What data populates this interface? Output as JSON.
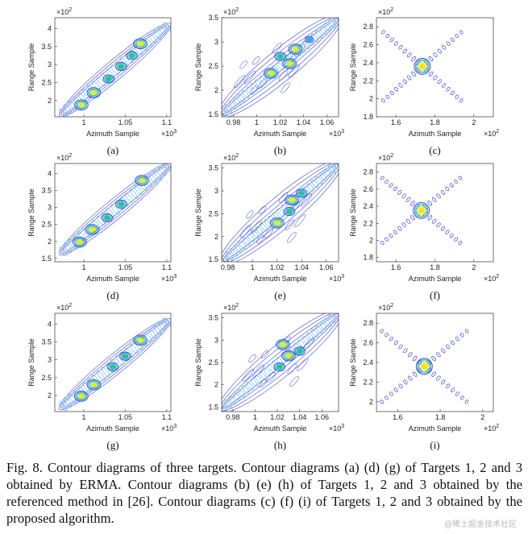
{
  "figure": {
    "caption": "Fig. 8. Contour diagrams of three targets. Contour diagrams (a) (d) (g) of Targets 1, 2 and 3 obtained by ERMA. Contour diagrams (b) (e) (h) of Targets 1, 2 and 3 obtained by the referenced method in [26]. Contour diagrams (c) (f) (i) of Targets 1, 2 and 3 obtained by the proposed algorithm.",
    "watermark": "@稀土掘金技术社区"
  },
  "colors": {
    "contour_outer": "#3b45d8",
    "contour_mid": "#2fa9e6",
    "contour_core": "#23c58a",
    "contour_hot": "#f1e32a",
    "axis": "#333333"
  },
  "chart_data": [
    {
      "id": "a",
      "type": "contour",
      "subtitle": "(a)",
      "method": "ERMA",
      "xlabel": "Azimuth Sample",
      "ylabel": "Range Sample",
      "x_exponent": "10^3",
      "y_exponent": "10^2",
      "xlim": [
        0.965,
        1.105
      ],
      "ylim": [
        1.55,
        4.3
      ],
      "xticks": [
        1,
        1.05,
        1.1
      ],
      "xtick_labels": [
        "1",
        "1.05",
        "1.1"
      ],
      "yticks": [
        2,
        2.5,
        3,
        3.5,
        4
      ],
      "ytick_labels": [
        "2",
        "2.5",
        "3",
        "3.5",
        "4"
      ],
      "pattern": "diagonal",
      "line": {
        "x1": 0.975,
        "y1": 1.65,
        "x2": 1.1,
        "y2": 4.05
      },
      "blobs": [
        {
          "x": 0.997,
          "y": 1.88,
          "level": 4
        },
        {
          "x": 1.012,
          "y": 2.22,
          "level": 4
        },
        {
          "x": 1.03,
          "y": 2.6,
          "level": 3
        },
        {
          "x": 1.045,
          "y": 2.95,
          "level": 3
        },
        {
          "x": 1.058,
          "y": 3.25,
          "level": 3
        },
        {
          "x": 1.068,
          "y": 3.58,
          "level": 4
        }
      ]
    },
    {
      "id": "b",
      "type": "contour",
      "subtitle": "(b)",
      "method": "Referenced method [26]",
      "xlabel": "Azimuth Sample",
      "ylabel": "Range Sample",
      "x_exponent": "10^3",
      "y_exponent": "10^2",
      "xlim": [
        0.97,
        1.07
      ],
      "ylim": [
        1.45,
        3.5
      ],
      "xticks": [
        0.98,
        1,
        1.02,
        1.04,
        1.06
      ],
      "xtick_labels": [
        "0.98",
        "1",
        "1.02",
        "1.04",
        "1.06"
      ],
      "yticks": [
        1.5,
        2,
        2.5,
        3,
        3.5
      ],
      "ytick_labels": [
        "1.5",
        "2",
        "2.5",
        "3",
        "3.5"
      ],
      "pattern": "scatter",
      "line": {
        "x1": 0.972,
        "y1": 1.55,
        "x2": 1.068,
        "y2": 3.45
      },
      "blobs": [
        {
          "x": 1.012,
          "y": 2.35,
          "level": 4
        },
        {
          "x": 1.028,
          "y": 2.55,
          "level": 4
        },
        {
          "x": 1.033,
          "y": 2.85,
          "level": 4
        },
        {
          "x": 1.02,
          "y": 2.7,
          "level": 3
        },
        {
          "x": 1.045,
          "y": 3.05,
          "level": 2
        }
      ]
    },
    {
      "id": "c",
      "type": "contour",
      "subtitle": "(c)",
      "method": "Proposed algorithm",
      "xlabel": "Azimuth Sample",
      "ylabel": "Range Sample",
      "x_exponent": "10^2",
      "y_exponent": "10^2",
      "xlim": [
        1.5,
        2.1
      ],
      "ylim": [
        1.8,
        2.9
      ],
      "xticks": [
        1.6,
        1.8,
        2
      ],
      "xtick_labels": [
        "1.6",
        "1.8",
        "2"
      ],
      "yticks": [
        1.8,
        2,
        2.2,
        2.4,
        2.6,
        2.8
      ],
      "ytick_labels": [
        "1.8",
        "2",
        "2.2",
        "2.4",
        "2.6",
        "2.8"
      ],
      "pattern": "cross",
      "center": {
        "x": 1.735,
        "y": 2.36
      },
      "arms": {
        "dx": 0.2,
        "dy": 0.38
      },
      "blobs": [
        {
          "x": 1.735,
          "y": 2.36,
          "level": 5
        }
      ]
    },
    {
      "id": "d",
      "type": "contour",
      "subtitle": "(d)",
      "method": "ERMA",
      "xlabel": "Azimuth Sample",
      "ylabel": "Range Sample",
      "x_exponent": "10^3",
      "y_exponent": "10^2",
      "xlim": [
        0.965,
        1.105
      ],
      "ylim": [
        1.4,
        4.3
      ],
      "xticks": [
        1,
        1.05,
        1.1
      ],
      "xtick_labels": [
        "1",
        "1.05",
        "1.1"
      ],
      "yticks": [
        1.5,
        2,
        2.5,
        3,
        3.5,
        4
      ],
      "ytick_labels": [
        "1.5",
        "2",
        "2.5",
        "3",
        "3.5",
        "4"
      ],
      "pattern": "diagonal",
      "line": {
        "x1": 0.975,
        "y1": 1.7,
        "x2": 1.1,
        "y2": 4.2
      },
      "blobs": [
        {
          "x": 0.995,
          "y": 1.98,
          "level": 4
        },
        {
          "x": 1.01,
          "y": 2.35,
          "level": 4
        },
        {
          "x": 1.028,
          "y": 2.7,
          "level": 3
        },
        {
          "x": 1.045,
          "y": 3.1,
          "level": 3
        },
        {
          "x": 1.07,
          "y": 3.8,
          "level": 4
        }
      ]
    },
    {
      "id": "e",
      "type": "contour",
      "subtitle": "(e)",
      "method": "Referenced method [26]",
      "xlabel": "Azimuth Sample",
      "ylabel": "Range Sample",
      "x_exponent": "10^3",
      "y_exponent": "10^2",
      "xlim": [
        0.975,
        1.07
      ],
      "ylim": [
        1.45,
        3.6
      ],
      "xticks": [
        0.98,
        1,
        1.02,
        1.04,
        1.06
      ],
      "xtick_labels": [
        "0.98",
        "1",
        "1.02",
        "1.04",
        "1.06"
      ],
      "yticks": [
        1.5,
        2,
        2.5,
        3,
        3.5
      ],
      "ytick_labels": [
        "1.5",
        "2",
        "2.5",
        "3",
        "3.5"
      ],
      "pattern": "scatter",
      "line": {
        "x1": 0.978,
        "y1": 1.5,
        "x2": 1.068,
        "y2": 3.55
      },
      "blobs": [
        {
          "x": 1.02,
          "y": 2.3,
          "level": 4
        },
        {
          "x": 1.03,
          "y": 2.55,
          "level": 3
        },
        {
          "x": 1.032,
          "y": 2.8,
          "level": 4
        },
        {
          "x": 1.04,
          "y": 2.95,
          "level": 3
        }
      ]
    },
    {
      "id": "f",
      "type": "contour",
      "subtitle": "(f)",
      "method": "Proposed algorithm",
      "xlabel": "Azimuth Sample",
      "ylabel": "Range Sample",
      "x_exponent": "10^2",
      "y_exponent": "10^2",
      "xlim": [
        1.5,
        2.1
      ],
      "ylim": [
        1.75,
        2.9
      ],
      "xticks": [
        1.6,
        1.8,
        2
      ],
      "xtick_labels": [
        "1.6",
        "1.8",
        "2"
      ],
      "yticks": [
        1.8,
        2,
        2.2,
        2.4,
        2.6,
        2.8
      ],
      "ytick_labels": [
        "1.8",
        "2",
        "2.2",
        "2.4",
        "2.6",
        "2.8"
      ],
      "pattern": "cross",
      "center": {
        "x": 1.73,
        "y": 2.35
      },
      "arms": {
        "dx": 0.2,
        "dy": 0.38
      },
      "blobs": [
        {
          "x": 1.73,
          "y": 2.35,
          "level": 5
        }
      ]
    },
    {
      "id": "g",
      "type": "contour",
      "subtitle": "(g)",
      "method": "ERMA",
      "xlabel": "Azimuth Sample",
      "ylabel": "Range Sample",
      "x_exponent": "10^3",
      "y_exponent": "10^2",
      "xlim": [
        0.965,
        1.105
      ],
      "ylim": [
        1.55,
        4.3
      ],
      "xticks": [
        1,
        1.05,
        1.1
      ],
      "xtick_labels": [
        "1",
        "1.05",
        "1.1"
      ],
      "yticks": [
        2,
        2.5,
        3,
        3.5,
        4
      ],
      "ytick_labels": [
        "2",
        "2.5",
        "3",
        "3.5",
        "4"
      ],
      "pattern": "diagonal",
      "line": {
        "x1": 0.975,
        "y1": 1.7,
        "x2": 1.1,
        "y2": 4.05
      },
      "blobs": [
        {
          "x": 0.997,
          "y": 1.98,
          "level": 4
        },
        {
          "x": 1.012,
          "y": 2.3,
          "level": 4
        },
        {
          "x": 1.035,
          "y": 2.8,
          "level": 3
        },
        {
          "x": 1.05,
          "y": 3.1,
          "level": 3
        },
        {
          "x": 1.068,
          "y": 3.55,
          "level": 4
        }
      ]
    },
    {
      "id": "h",
      "type": "contour",
      "subtitle": "(h)",
      "method": "Referenced method [26]",
      "xlabel": "Azimuth Sample",
      "ylabel": "Range Sample",
      "x_exponent": "10^3",
      "y_exponent": "10^2",
      "xlim": [
        0.97,
        1.075
      ],
      "ylim": [
        1.4,
        3.6
      ],
      "xticks": [
        0.98,
        1,
        1.02,
        1.04,
        1.06
      ],
      "xtick_labels": [
        "0.98",
        "1",
        "1.02",
        "1.04",
        "1.06"
      ],
      "yticks": [
        1.5,
        2,
        2.5,
        3,
        3.5
      ],
      "ytick_labels": [
        "1.5",
        "2",
        "2.5",
        "3",
        "3.5"
      ],
      "pattern": "scatter",
      "line": {
        "x1": 0.972,
        "y1": 1.5,
        "x2": 1.073,
        "y2": 3.55
      },
      "blobs": [
        {
          "x": 1.022,
          "y": 2.4,
          "level": 3
        },
        {
          "x": 1.03,
          "y": 2.65,
          "level": 4
        },
        {
          "x": 1.025,
          "y": 2.9,
          "level": 4
        },
        {
          "x": 1.04,
          "y": 2.75,
          "level": 3
        }
      ]
    },
    {
      "id": "i",
      "type": "contour",
      "subtitle": "(i)",
      "method": "Proposed algorithm",
      "xlabel": "Azimuth Sample",
      "ylabel": "Range Sample",
      "x_exponent": "10^2",
      "y_exponent": "10^2",
      "xlim": [
        1.5,
        2.05
      ],
      "ylim": [
        1.9,
        2.9
      ],
      "xticks": [
        1.6,
        1.8,
        2
      ],
      "xtick_labels": [
        "1.6",
        "1.8",
        "2"
      ],
      "yticks": [
        2,
        2.2,
        2.4,
        2.6,
        2.8
      ],
      "ytick_labels": [
        "2",
        "2.2",
        "2.4",
        "2.6",
        "2.8"
      ],
      "pattern": "cross",
      "center": {
        "x": 1.725,
        "y": 2.36
      },
      "arms": {
        "dx": 0.2,
        "dy": 0.36
      },
      "blobs": [
        {
          "x": 1.725,
          "y": 2.36,
          "level": 5
        }
      ]
    }
  ]
}
